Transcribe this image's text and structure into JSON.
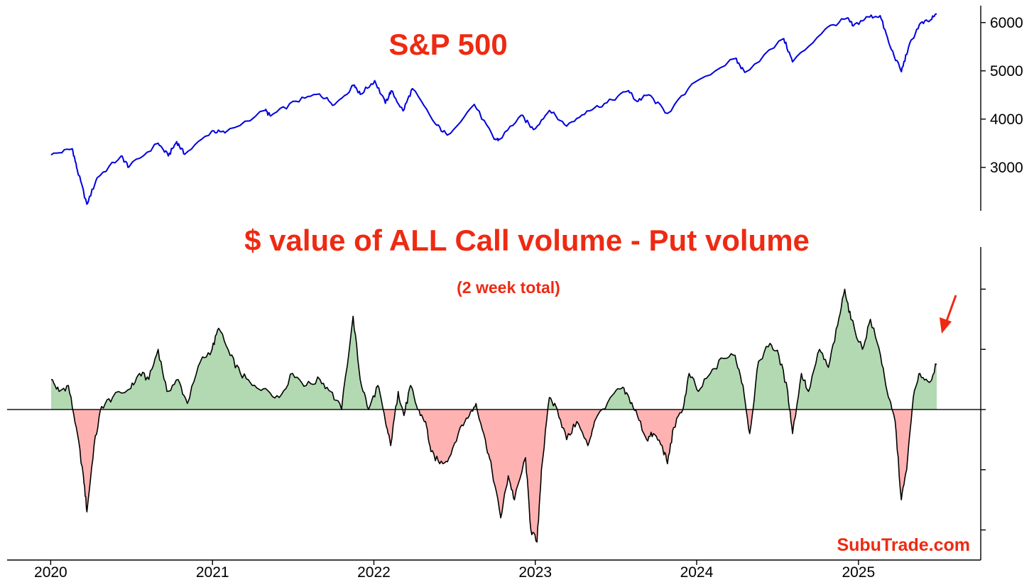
{
  "chart_data": [
    {
      "type": "line",
      "title": "S&P 500",
      "y_axis_side": "right",
      "ylim": [
        2100,
        6350
      ],
      "y_ticks": [
        3000,
        4000,
        5000,
        6000
      ],
      "y_tick_labels": [
        "3000",
        "4000",
        "5000",
        "6000"
      ],
      "x_range": [
        "2020-01-02",
        "2025-06-27"
      ],
      "series": [
        {
          "color": "#0000dd",
          "points": [
            [
              "2020-01-02",
              3258
            ],
            [
              "2020-02-19",
              3386
            ],
            [
              "2020-03-01",
              2954
            ],
            [
              "2020-03-23",
              2237
            ],
            [
              "2020-04-15",
              2783
            ],
            [
              "2020-06-08",
              3232
            ],
            [
              "2020-06-26",
              3009
            ],
            [
              "2020-08-31",
              3500
            ],
            [
              "2020-09-23",
              3237
            ],
            [
              "2020-10-12",
              3534
            ],
            [
              "2020-10-30",
              3270
            ],
            [
              "2020-12-31",
              3756
            ],
            [
              "2021-01-29",
              3714
            ],
            [
              "2021-04-30",
              4181
            ],
            [
              "2021-05-12",
              4063
            ],
            [
              "2021-07-09",
              4370
            ],
            [
              "2021-08-31",
              4522
            ],
            [
              "2021-10-04",
              4300
            ],
            [
              "2021-11-18",
              4704
            ],
            [
              "2021-12-01",
              4513
            ],
            [
              "2022-01-03",
              4797
            ],
            [
              "2022-01-27",
              4326
            ],
            [
              "2022-02-09",
              4587
            ],
            [
              "2022-03-08",
              4170
            ],
            [
              "2022-03-29",
              4631
            ],
            [
              "2022-05-20",
              3901
            ],
            [
              "2022-06-16",
              3667
            ],
            [
              "2022-08-16",
              4305
            ],
            [
              "2022-09-30",
              3585
            ],
            [
              "2022-10-12",
              3577
            ],
            [
              "2022-11-30",
              4080
            ],
            [
              "2022-12-28",
              3783
            ],
            [
              "2023-02-02",
              4179
            ],
            [
              "2023-03-13",
              3855
            ],
            [
              "2023-04-28",
              4169
            ],
            [
              "2023-06-12",
              4338
            ],
            [
              "2023-07-31",
              4589
            ],
            [
              "2023-08-18",
              4370
            ],
            [
              "2023-09-14",
              4505
            ],
            [
              "2023-10-27",
              4117
            ],
            [
              "2023-12-29",
              4770
            ],
            [
              "2024-03-28",
              5254
            ],
            [
              "2024-04-19",
              4967
            ],
            [
              "2024-07-16",
              5667
            ],
            [
              "2024-08-05",
              5186
            ],
            [
              "2024-10-18",
              5864
            ],
            [
              "2024-12-06",
              6090
            ],
            [
              "2024-12-20",
              5930
            ],
            [
              "2025-01-23",
              6119
            ],
            [
              "2025-02-19",
              6144
            ],
            [
              "2025-03-13",
              5521
            ],
            [
              "2025-04-08",
              4983
            ],
            [
              "2025-04-24",
              5484
            ],
            [
              "2025-05-19",
              5963
            ],
            [
              "2025-06-12",
              6045
            ],
            [
              "2025-06-27",
              6173
            ]
          ]
        }
      ]
    },
    {
      "type": "area",
      "title": "$ value of ALL Call volume - Put volume",
      "subtitle": "(2 week total)",
      "baseline": 0,
      "ylim": [
        -2.5,
        2.7
      ],
      "y_ticks": [
        -2,
        -1,
        0,
        1,
        2
      ],
      "y_tick_labels": [],
      "x_ticks": [
        "2020",
        "2021",
        "2022",
        "2023",
        "2024",
        "2025"
      ],
      "x_range": [
        "2020-01-02",
        "2025-06-27"
      ],
      "positive_fill": "#b2d9b2",
      "negative_fill": "#ffb2b2",
      "line_color": "#000000",
      "series": [
        {
          "points": [
            [
              "2020-01-02",
              0.5
            ],
            [
              "2020-01-20",
              0.3
            ],
            [
              "2020-02-10",
              0.4
            ],
            [
              "2020-02-28",
              -0.3
            ],
            [
              "2020-03-15",
              -1.1
            ],
            [
              "2020-03-23",
              -1.7
            ],
            [
              "2020-04-08",
              -0.6
            ],
            [
              "2020-04-25",
              0.05
            ],
            [
              "2020-05-20",
              0.2
            ],
            [
              "2020-06-30",
              0.35
            ],
            [
              "2020-07-20",
              0.6
            ],
            [
              "2020-08-10",
              0.5
            ],
            [
              "2020-08-31",
              1.0
            ],
            [
              "2020-09-20",
              0.3
            ],
            [
              "2020-10-15",
              0.5
            ],
            [
              "2020-11-05",
              0.1
            ],
            [
              "2020-12-05",
              0.8
            ],
            [
              "2020-12-31",
              1.0
            ],
            [
              "2021-01-15",
              1.35
            ],
            [
              "2021-02-10",
              0.9
            ],
            [
              "2021-03-05",
              0.6
            ],
            [
              "2021-04-01",
              0.4
            ],
            [
              "2021-05-01",
              0.35
            ],
            [
              "2021-06-01",
              0.2
            ],
            [
              "2021-07-01",
              0.6
            ],
            [
              "2021-08-01",
              0.4
            ],
            [
              "2021-09-01",
              0.5
            ],
            [
              "2021-09-25",
              0.3
            ],
            [
              "2021-10-20",
              0.0
            ],
            [
              "2021-11-15",
              1.55
            ],
            [
              "2021-12-01",
              0.5
            ],
            [
              "2021-12-20",
              0.0
            ],
            [
              "2022-01-10",
              0.4
            ],
            [
              "2022-01-27",
              -0.2
            ],
            [
              "2022-02-08",
              -0.6
            ],
            [
              "2022-02-25",
              0.3
            ],
            [
              "2022-03-10",
              -0.1
            ],
            [
              "2022-03-25",
              0.4
            ],
            [
              "2022-04-10",
              0.0
            ],
            [
              "2022-04-28",
              -0.2
            ],
            [
              "2022-05-10",
              -0.7
            ],
            [
              "2022-05-30",
              -0.9
            ],
            [
              "2022-06-20",
              -0.8
            ],
            [
              "2022-07-15",
              -0.3
            ],
            [
              "2022-08-05",
              -0.1
            ],
            [
              "2022-08-20",
              0.1
            ],
            [
              "2022-09-10",
              -0.5
            ],
            [
              "2022-09-25",
              -1.0
            ],
            [
              "2022-10-15",
              -1.8
            ],
            [
              "2022-11-01",
              -1.1
            ],
            [
              "2022-11-15",
              -1.5
            ],
            [
              "2022-12-10",
              -0.8
            ],
            [
              "2022-12-22",
              -2.0
            ],
            [
              "2023-01-05",
              -2.2
            ],
            [
              "2023-01-15",
              -1.0
            ],
            [
              "2023-02-02",
              0.2
            ],
            [
              "2023-02-20",
              0.0
            ],
            [
              "2023-03-13",
              -0.5
            ],
            [
              "2023-04-05",
              -0.2
            ],
            [
              "2023-04-30",
              -0.6
            ],
            [
              "2023-05-15",
              -0.2
            ],
            [
              "2023-06-20",
              0.2
            ],
            [
              "2023-07-15",
              0.35
            ],
            [
              "2023-08-01",
              0.2
            ],
            [
              "2023-08-20",
              -0.1
            ],
            [
              "2023-09-10",
              -0.5
            ],
            [
              "2023-09-25",
              -0.4
            ],
            [
              "2023-10-15",
              -0.6
            ],
            [
              "2023-10-27",
              -0.9
            ],
            [
              "2023-11-10",
              -0.3
            ],
            [
              "2023-12-01",
              0.0
            ],
            [
              "2023-12-15",
              0.6
            ],
            [
              "2024-01-05",
              0.3
            ],
            [
              "2024-02-01",
              0.6
            ],
            [
              "2024-03-01",
              0.85
            ],
            [
              "2024-03-28",
              0.9
            ],
            [
              "2024-04-15",
              0.4
            ],
            [
              "2024-04-30",
              -0.4
            ],
            [
              "2024-05-20",
              0.8
            ],
            [
              "2024-06-15",
              1.1
            ],
            [
              "2024-07-05",
              0.9
            ],
            [
              "2024-07-25",
              0.3
            ],
            [
              "2024-08-05",
              -0.4
            ],
            [
              "2024-08-25",
              0.6
            ],
            [
              "2024-09-10",
              0.3
            ],
            [
              "2024-10-05",
              1.0
            ],
            [
              "2024-10-25",
              0.7
            ],
            [
              "2024-11-15",
              1.4
            ],
            [
              "2024-12-01",
              2.0
            ],
            [
              "2024-12-15",
              1.5
            ],
            [
              "2025-01-10",
              1.0
            ],
            [
              "2025-01-28",
              1.5
            ],
            [
              "2025-02-20",
              0.9
            ],
            [
              "2025-03-10",
              0.2
            ],
            [
              "2025-03-25",
              -0.2
            ],
            [
              "2025-04-08",
              -1.5
            ],
            [
              "2025-04-20",
              -1.0
            ],
            [
              "2025-05-05",
              0.2
            ],
            [
              "2025-05-20",
              0.6
            ],
            [
              "2025-06-10",
              0.45
            ],
            [
              "2025-06-27",
              0.75
            ]
          ]
        }
      ],
      "annotations": {
        "arrow_color": "#ee2a12",
        "watermark": "SubuTrade.com"
      }
    }
  ]
}
